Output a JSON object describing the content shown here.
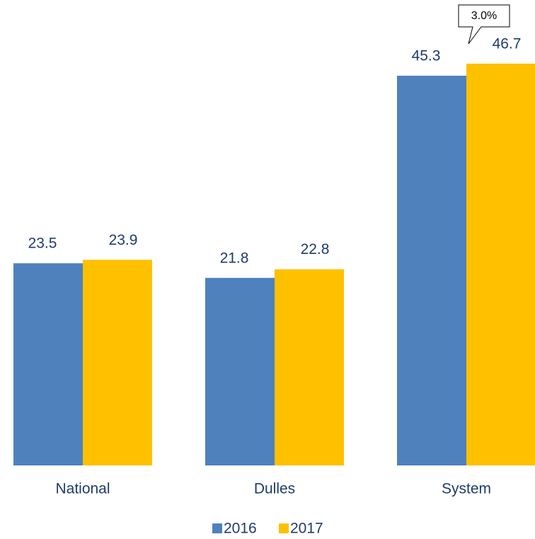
{
  "chart_data": {
    "type": "bar",
    "categories": [
      "National",
      "Dulles",
      "System"
    ],
    "series": [
      {
        "name": "2016",
        "color": "#4f81bd",
        "values": [
          23.5,
          21.8,
          45.3
        ]
      },
      {
        "name": "2017",
        "color": "#ffc000",
        "values": [
          23.9,
          22.8,
          46.7
        ]
      }
    ],
    "annotations": [
      "3.0%"
    ],
    "legend": "bottom"
  }
}
